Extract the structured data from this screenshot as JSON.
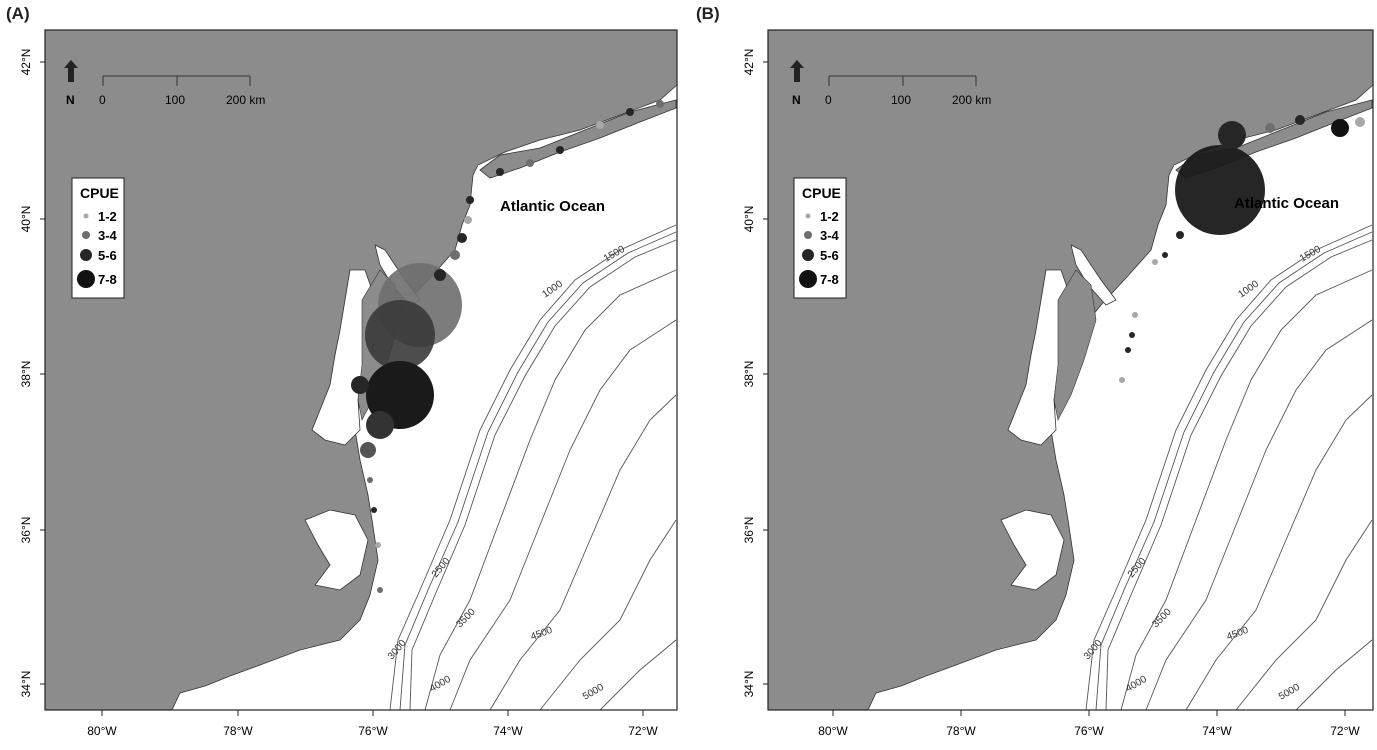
{
  "panels": [
    {
      "label": "(A)",
      "legend": {
        "title": "CPUE",
        "entries": [
          {
            "label": "1-2",
            "color": "#a8a8a8"
          },
          {
            "label": "3-4",
            "color": "#6e6e6e"
          },
          {
            "label": "5-6",
            "color": "#262626"
          },
          {
            "label": "7-8",
            "color": "#111111"
          }
        ]
      },
      "ocean_label": "Atlantic Ocean",
      "north_label": "N",
      "scale_labels": [
        "0",
        "100",
        "200 km"
      ],
      "lat_ticks": [
        "42°N",
        "40°N",
        "38°N",
        "36°N",
        "34°N"
      ],
      "lon_ticks": [
        "80°W",
        "78°W",
        "76°W",
        "74°W",
        "72°W"
      ],
      "contours": [
        "1000",
        "1500",
        "2500",
        "3000",
        "3500",
        "4000",
        "4500",
        "5000"
      ]
    },
    {
      "label": "(B)",
      "legend": {
        "title": "CPUE",
        "entries": [
          {
            "label": "1-2",
            "color": "#a8a8a8"
          },
          {
            "label": "3-4",
            "color": "#6e6e6e"
          },
          {
            "label": "5-6",
            "color": "#262626"
          },
          {
            "label": "7-8",
            "color": "#111111"
          }
        ]
      },
      "ocean_label": "Atlantic Ocean",
      "north_label": "N",
      "scale_labels": [
        "0",
        "100",
        "200 km"
      ],
      "lat_ticks": [
        "42°N",
        "40°N",
        "38°N",
        "36°N",
        "34°N"
      ],
      "lon_ticks": [
        "80°W",
        "78°W",
        "76°W",
        "74°W",
        "72°W"
      ],
      "contours": [
        "1000",
        "1500",
        "2500",
        "3000",
        "3500",
        "4000",
        "4500",
        "5000"
      ]
    }
  ],
  "colors": {
    "land": "#8c8c8c",
    "ocean": "#ffffff",
    "contour": "#555555",
    "frame": "#222222"
  }
}
